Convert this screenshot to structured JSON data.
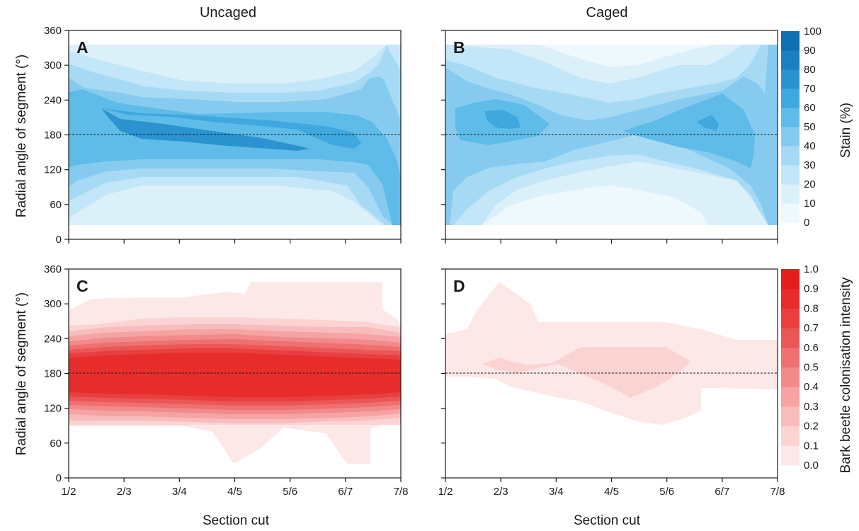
{
  "column_titles": [
    "Uncaged",
    "Caged"
  ],
  "colorbars": [
    {
      "id": "stain",
      "title": "Stain (%)",
      "labels": [
        "100",
        "90",
        "80",
        "70",
        "60",
        "50",
        "40",
        "30",
        "20",
        "10",
        "0"
      ],
      "colors": [
        "#eef8fd",
        "#dcf0fa",
        "#c3e6f8",
        "#a6daf4",
        "#86cbef",
        "#5fbbe8",
        "#3ea8df",
        "#2a93d0",
        "#1b7fc1",
        "#0f6fb2"
      ]
    },
    {
      "id": "beetle",
      "title": "Bark beetle colonisation intensity",
      "labels": [
        "1.0",
        "0.9",
        "0.8",
        "0.7",
        "0.6",
        "0.5",
        "0.4",
        "0.3",
        "0.2",
        "0.1",
        "0.0"
      ],
      "colors": [
        "#fde8e8",
        "#fbd3d3",
        "#f8bcbc",
        "#f5a3a3",
        "#f28a8a",
        "#ee7070",
        "#eb5757",
        "#e93f3f",
        "#e72c2c",
        "#e51d1d"
      ]
    }
  ],
  "chart_data": [
    {
      "panel": "A",
      "type": "heatmap",
      "group": "Uncaged",
      "colorbar": "stain",
      "x_ticks": [
        "1/2",
        "2/3",
        "3/4",
        "4/5",
        "5/6",
        "6/7",
        "7/8"
      ],
      "y_ticks": [
        "0",
        "60",
        "120",
        "180",
        "240",
        "300",
        "360"
      ],
      "xlabel": "",
      "ylabel": "Radial angle of segment (°)",
      "ylim": [
        0,
        360
      ],
      "data_y_range": [
        22.5,
        337.5
      ],
      "reference_line_y": 180,
      "approx_values_pct": [
        [
          0,
          20,
          45,
          70,
          45,
          20,
          0
        ],
        [
          0,
          15,
          45,
          80,
          55,
          20,
          5
        ],
        [
          0,
          10,
          40,
          80,
          50,
          15,
          0
        ],
        [
          0,
          10,
          35,
          80,
          45,
          10,
          0
        ],
        [
          0,
          10,
          35,
          75,
          45,
          10,
          0
        ],
        [
          5,
          20,
          45,
          60,
          50,
          30,
          10
        ],
        [
          15,
          40,
          50,
          50,
          50,
          45,
          30
        ]
      ]
    },
    {
      "panel": "B",
      "type": "heatmap",
      "group": "Caged",
      "colorbar": "stain",
      "x_ticks": [
        "1/2",
        "2/3",
        "3/4",
        "4/5",
        "5/6",
        "6/7",
        "7/8"
      ],
      "y_ticks": [
        "0",
        "60",
        "120",
        "180",
        "240",
        "300",
        "360"
      ],
      "xlabel": "",
      "ylabel": "",
      "ylim": [
        0,
        360
      ],
      "data_y_range": [
        22.5,
        337.5
      ],
      "reference_line_y": 180,
      "approx_values_pct": [
        [
          30,
          40,
          50,
          55,
          50,
          30,
          10
        ],
        [
          20,
          40,
          55,
          75,
          60,
          30,
          10
        ],
        [
          10,
          30,
          45,
          55,
          45,
          20,
          5
        ],
        [
          10,
          30,
          40,
          45,
          40,
          20,
          0
        ],
        [
          10,
          30,
          45,
          60,
          50,
          25,
          5
        ],
        [
          20,
          40,
          55,
          75,
          60,
          30,
          10
        ],
        [
          50,
          50,
          50,
          50,
          50,
          40,
          30
        ]
      ]
    },
    {
      "panel": "C",
      "type": "heatmap",
      "group": "Uncaged",
      "colorbar": "beetle",
      "x_ticks": [
        "1/2",
        "2/3",
        "3/4",
        "4/5",
        "5/6",
        "6/7",
        "7/8"
      ],
      "y_ticks": [
        "0",
        "60",
        "120",
        "180",
        "240",
        "300",
        "360"
      ],
      "xlabel": "Section cut",
      "ylabel": "Radial angle of segment (°)",
      "ylim": [
        0,
        360
      ],
      "data_y_range": [
        22.5,
        337.5
      ],
      "reference_line_y": 180,
      "approx_values": [
        [
          0,
          0.1,
          0.9,
          1.0,
          0.7,
          0.1,
          0
        ],
        [
          0,
          0.2,
          0.95,
          1.0,
          0.75,
          0.1,
          0
        ],
        [
          0,
          0.15,
          0.95,
          1.0,
          0.8,
          0.1,
          0
        ],
        [
          0.1,
          0.2,
          1.0,
          1.0,
          0.8,
          0.15,
          0.1
        ],
        [
          0.1,
          0.2,
          1.0,
          1.0,
          0.75,
          0.15,
          0.1
        ],
        [
          0.1,
          0.2,
          0.95,
          1.0,
          0.75,
          0.1,
          0.1
        ],
        [
          0,
          0.1,
          0.9,
          1.0,
          0.7,
          0.1,
          0
        ]
      ]
    },
    {
      "panel": "D",
      "type": "heatmap",
      "group": "Caged",
      "colorbar": "beetle",
      "x_ticks": [
        "1/2",
        "2/3",
        "3/4",
        "4/5",
        "5/6",
        "6/7",
        "7/8"
      ],
      "y_ticks": [
        "0",
        "60",
        "120",
        "180",
        "240",
        "300",
        "360"
      ],
      "xlabel": "Section cut",
      "ylabel": "",
      "ylim": [
        0,
        360
      ],
      "data_y_range": [
        22.5,
        337.5
      ],
      "reference_line_y": 180,
      "approx_values": [
        [
          0,
          0,
          0,
          0.1,
          0.1,
          0,
          0
        ],
        [
          0,
          0,
          0,
          0.2,
          0.3,
          0.1,
          0.1
        ],
        [
          0,
          0,
          0.1,
          0.2,
          0.1,
          0.1,
          0
        ],
        [
          0,
          0.1,
          0.1,
          0.3,
          0.1,
          0.1,
          0
        ],
        [
          0,
          0.1,
          0.1,
          0.3,
          0.1,
          0,
          0
        ],
        [
          0,
          0,
          0.1,
          0.1,
          0.1,
          0,
          0
        ],
        [
          0,
          0,
          0,
          0.1,
          0.1,
          0,
          0
        ]
      ]
    }
  ]
}
